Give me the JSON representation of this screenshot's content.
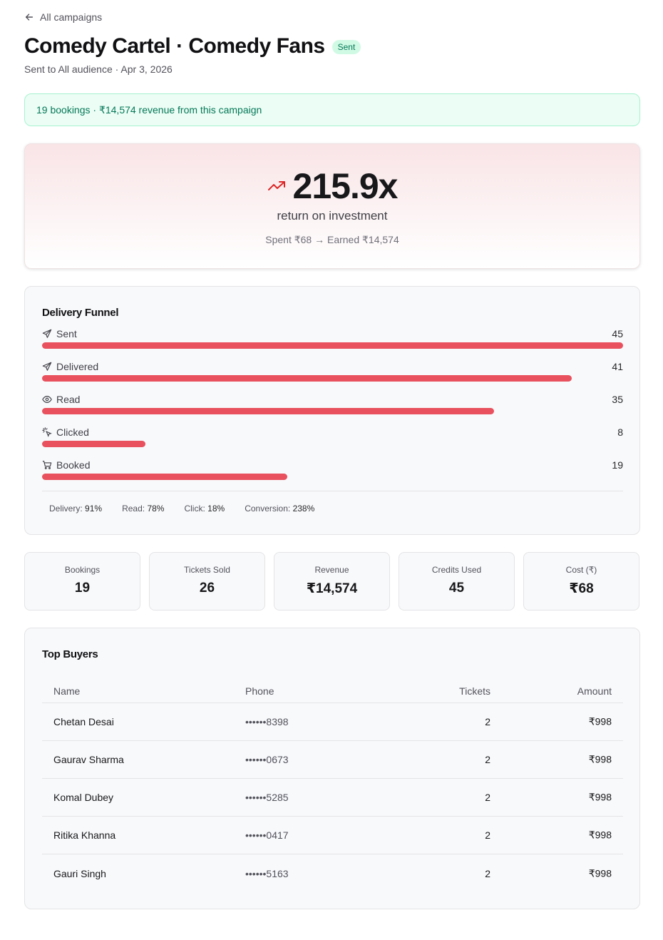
{
  "nav": {
    "back_label": "All campaigns"
  },
  "header": {
    "title": "Comedy Cartel · Comedy Fans",
    "status": "Sent",
    "subtitle": "Sent to All audience · Apr 3, 2026"
  },
  "banner": {
    "text": "19 bookings · ₹14,574 revenue from this campaign"
  },
  "roi": {
    "value": "215.9x",
    "label": "return on investment",
    "detail": "Spent ₹68 → Earned ₹14,574",
    "accent_color": "#dc2626"
  },
  "funnel": {
    "title": "Delivery Funnel",
    "bar_color": "#e8515d",
    "max": 45,
    "stages": [
      {
        "label": "Sent",
        "icon": "send-icon",
        "count": "45",
        "value": 45
      },
      {
        "label": "Delivered",
        "icon": "send-icon",
        "count": "41",
        "value": 41
      },
      {
        "label": "Read",
        "icon": "eye-icon",
        "count": "35",
        "value": 35
      },
      {
        "label": "Clicked",
        "icon": "click-icon",
        "count": "8",
        "value": 8
      },
      {
        "label": "Booked",
        "icon": "cart-icon",
        "count": "19",
        "value": 19
      }
    ],
    "rates": [
      {
        "label": "Delivery:",
        "value": "91%"
      },
      {
        "label": "Read:",
        "value": "78%"
      },
      {
        "label": "Click:",
        "value": "18%"
      },
      {
        "label": "Conversion:",
        "value": "238%"
      }
    ]
  },
  "stats": [
    {
      "label": "Bookings",
      "value": "19"
    },
    {
      "label": "Tickets Sold",
      "value": "26"
    },
    {
      "label": "Revenue",
      "value": "₹14,574"
    },
    {
      "label": "Credits Used",
      "value": "45"
    },
    {
      "label": "Cost (₹)",
      "value": "₹68"
    }
  ],
  "buyers": {
    "title": "Top Buyers",
    "columns": {
      "name": "Name",
      "phone": "Phone",
      "tickets": "Tickets",
      "amount": "Amount"
    },
    "rows": [
      {
        "name": "Chetan Desai",
        "phone": "••••••8398",
        "tickets": "2",
        "amount": "₹998"
      },
      {
        "name": "Gaurav Sharma",
        "phone": "••••••0673",
        "tickets": "2",
        "amount": "₹998"
      },
      {
        "name": "Komal Dubey",
        "phone": "••••••5285",
        "tickets": "2",
        "amount": "₹998"
      },
      {
        "name": "Ritika Khanna",
        "phone": "••••••0417",
        "tickets": "2",
        "amount": "₹998"
      },
      {
        "name": "Gauri Singh",
        "phone": "••••••5163",
        "tickets": "2",
        "amount": "₹998"
      }
    ]
  }
}
